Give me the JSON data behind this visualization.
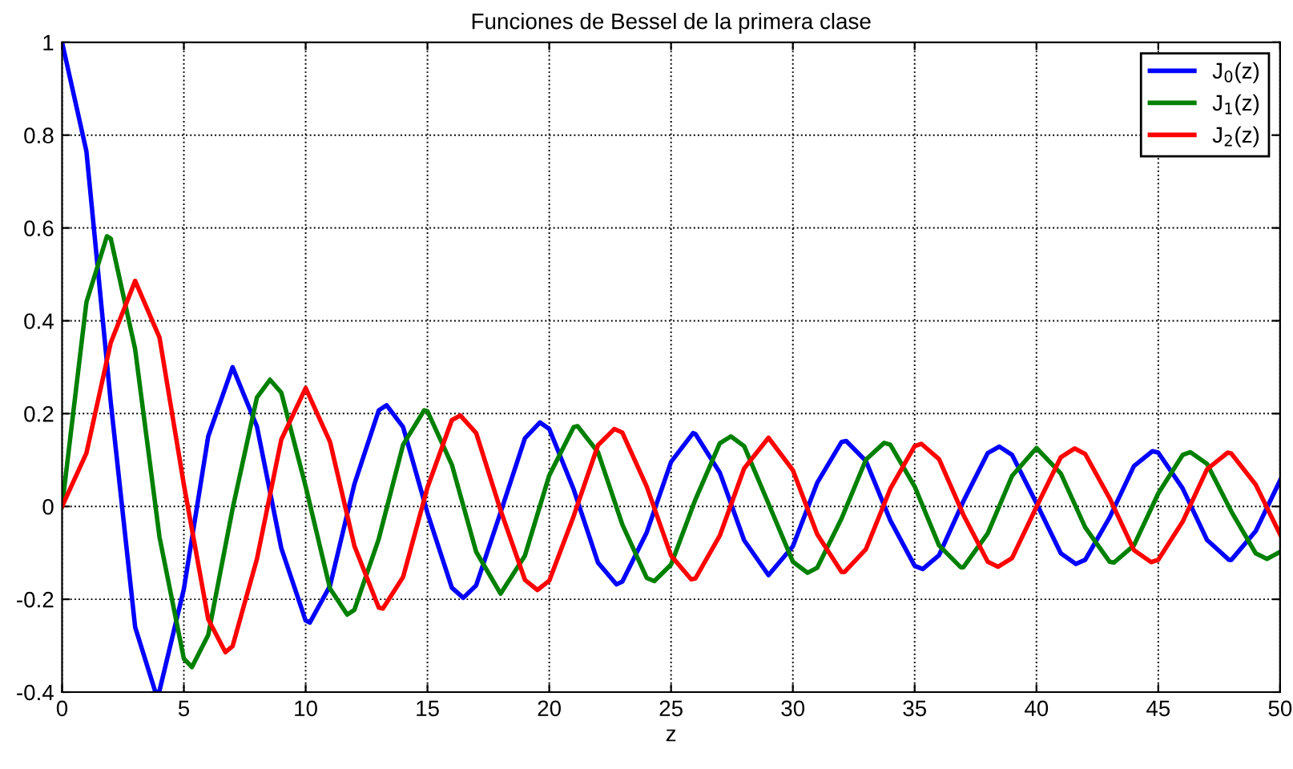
{
  "chart_data": {
    "type": "line",
    "title": "Funciones de Bessel de la primera clase",
    "xlabel": "z",
    "xlim": [
      0,
      50
    ],
    "ylim": [
      -0.4,
      1
    ],
    "xticks": [
      0,
      5,
      10,
      15,
      20,
      25,
      30,
      35,
      40,
      45,
      50
    ],
    "yticks": [
      -0.4,
      -0.2,
      0,
      0.2,
      0.4,
      0.6,
      0.8,
      1
    ],
    "grid": true,
    "legend": "top right",
    "line_style": "solid",
    "marker": "none",
    "series": [
      {
        "name": "J$_{0}$(z)",
        "color": "#0000ff",
        "x": [
          0,
          1,
          2,
          3,
          3.832,
          4,
          5,
          6,
          7,
          8,
          9,
          10,
          10.173,
          11,
          12,
          13,
          13.324,
          14,
          15,
          16,
          16.471,
          17,
          18,
          19,
          19.616,
          20,
          21,
          22,
          22.76,
          23,
          24,
          25,
          25.904,
          26,
          27,
          28,
          29,
          30,
          31,
          32,
          32.19,
          33,
          34,
          35,
          35.332,
          36,
          37,
          38,
          38.475,
          39,
          40,
          41,
          41.617,
          42,
          43,
          44,
          44.759,
          45,
          46,
          47,
          47.901,
          48,
          49,
          50
        ],
        "values": [
          1,
          0.765,
          0.224,
          -0.26,
          -0.4,
          -0.397,
          -0.178,
          0.151,
          0.3,
          0.172,
          -0.09,
          -0.246,
          -0.25,
          -0.171,
          0.048,
          0.207,
          0.218,
          0.171,
          -0.014,
          -0.175,
          -0.197,
          -0.17,
          -0.013,
          0.147,
          0.181,
          0.167,
          0.037,
          -0.121,
          -0.168,
          -0.162,
          -0.056,
          0.096,
          0.158,
          0.156,
          0.073,
          -0.073,
          -0.148,
          -0.086,
          0.051,
          0.139,
          0.141,
          0.098,
          -0.03,
          -0.128,
          -0.135,
          -0.105,
          0.011,
          0.115,
          0.129,
          0.111,
          0.007,
          -0.101,
          -0.124,
          -0.115,
          -0.024,
          0.087,
          0.119,
          0.116,
          0.039,
          -0.072,
          -0.115,
          -0.115,
          -0.053,
          0.056
        ]
      },
      {
        "name": "J$_{1}$(z)",
        "color": "#008000",
        "x": [
          0,
          1,
          1.841,
          2,
          3,
          4,
          5,
          5.331,
          6,
          7,
          8,
          8.536,
          9,
          10,
          11,
          11.706,
          12,
          13,
          14,
          14.864,
          15,
          16,
          17,
          18,
          19,
          20,
          21,
          21.164,
          22,
          23,
          24,
          24.311,
          25,
          26,
          27,
          27.457,
          28,
          29,
          30,
          30.602,
          31,
          32,
          33,
          33.746,
          34,
          35,
          36,
          36.89,
          37,
          38,
          39,
          40,
          41,
          42,
          43,
          43.177,
          44,
          45,
          46,
          46.32,
          47,
          48,
          49,
          49.463,
          50
        ],
        "values": [
          0,
          0.44,
          0.582,
          0.577,
          0.339,
          -0.066,
          -0.328,
          -0.346,
          -0.277,
          -0.005,
          0.235,
          0.273,
          0.245,
          0.043,
          -0.177,
          -0.233,
          -0.223,
          -0.07,
          0.133,
          0.207,
          0.205,
          0.09,
          -0.098,
          -0.188,
          -0.106,
          0.067,
          0.171,
          0.173,
          0.117,
          -0.039,
          -0.154,
          -0.161,
          -0.125,
          0.015,
          0.136,
          0.151,
          0.13,
          0.006,
          -0.119,
          -0.143,
          -0.132,
          -0.026,
          0.101,
          0.137,
          0.133,
          0.043,
          -0.084,
          -0.131,
          -0.131,
          -0.058,
          0.066,
          0.126,
          0.071,
          -0.045,
          -0.119,
          -0.121,
          -0.084,
          0.028,
          0.111,
          0.117,
          0.092,
          -0.011,
          -0.101,
          -0.113,
          -0.098
        ]
      },
      {
        "name": "J$_{2}$(z)",
        "color": "#ff0000",
        "x": [
          0,
          1,
          2,
          3,
          4,
          5,
          6,
          6.706,
          7,
          8,
          9,
          10,
          11,
          12,
          13,
          13.17,
          14,
          15,
          16,
          16.348,
          17,
          18,
          19,
          19.513,
          20,
          21,
          22,
          22.672,
          23,
          24,
          25,
          25.826,
          26,
          27,
          28,
          29,
          30,
          31,
          32,
          32.126,
          33,
          34,
          35,
          35.273,
          36,
          37,
          38,
          38.419,
          39,
          40,
          41,
          41.564,
          42,
          43,
          44,
          44.708,
          45,
          46,
          47,
          47.851,
          48,
          49,
          50
        ],
        "values": [
          0,
          0.115,
          0.353,
          0.486,
          0.364,
          0.047,
          -0.243,
          -0.314,
          -0.301,
          -0.113,
          0.144,
          0.255,
          0.139,
          -0.085,
          -0.218,
          -0.22,
          -0.152,
          0.041,
          0.186,
          0.196,
          0.158,
          -0.008,
          -0.158,
          -0.18,
          -0.16,
          -0.021,
          0.132,
          0.167,
          0.159,
          0.043,
          -0.106,
          -0.157,
          -0.155,
          -0.063,
          0.082,
          0.148,
          0.078,
          -0.06,
          -0.141,
          -0.141,
          -0.092,
          0.038,
          0.13,
          0.135,
          0.102,
          -0.018,
          -0.119,
          -0.13,
          -0.111,
          -0.001,
          0.106,
          0.125,
          0.113,
          0.018,
          -0.094,
          -0.12,
          -0.115,
          -0.033,
          0.08,
          0.116,
          0.114,
          0.047,
          -0.06
        ]
      }
    ]
  }
}
